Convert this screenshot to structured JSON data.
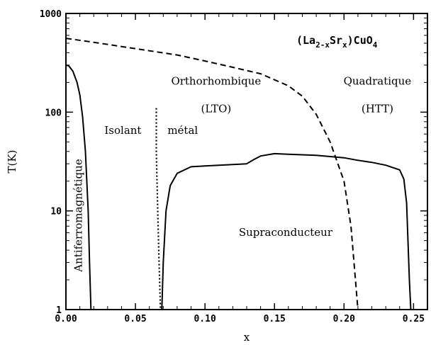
{
  "chart_data": {
    "type": "line",
    "title": "",
    "formula": {
      "base": "(La",
      "sub1": "2-x",
      "mid": "Sr",
      "sub2": "x",
      "tail": ")CuO",
      "sub3": "4"
    },
    "xlabel": "x",
    "ylabel": "T(K)",
    "xlim": [
      0.0,
      0.26
    ],
    "ylim": [
      1,
      1000
    ],
    "yscale": "log",
    "x_ticks": [
      0.0,
      0.05,
      0.1,
      0.15,
      0.2,
      0.25
    ],
    "x_tick_labels": [
      "0.00",
      "0.05",
      "0.10",
      "0.15",
      "0.20",
      "0.25"
    ],
    "y_ticks": [
      1,
      10,
      100,
      1000
    ],
    "y_tick_labels": [
      "1",
      "10",
      "100",
      "1000"
    ],
    "grid": false,
    "series": [
      {
        "style": "solid",
        "x": [
          0.0,
          0.002,
          0.005,
          0.008,
          0.01,
          0.012,
          0.014,
          0.016,
          0.017,
          0.018
        ],
        "y": [
          300,
          295,
          260,
          200,
          150,
          90,
          40,
          10,
          3,
          1
        ]
      },
      {
        "style": "dotted",
        "x": [
          0.065,
          0.065,
          0.066,
          0.067,
          0.068
        ],
        "y": [
          110,
          40,
          10,
          3,
          1
        ]
      },
      {
        "style": "dashed",
        "x": [
          0.0,
          0.02,
          0.05,
          0.08,
          0.1,
          0.12,
          0.14,
          0.16,
          0.17,
          0.18,
          0.19,
          0.2,
          0.205,
          0.21
        ],
        "y": [
          560,
          510,
          440,
          380,
          330,
          285,
          245,
          185,
          145,
          95,
          50,
          20,
          7,
          1
        ]
      },
      {
        "style": "solid",
        "x": [
          0.069,
          0.07,
          0.072,
          0.075,
          0.08,
          0.09,
          0.1,
          0.11,
          0.12,
          0.13,
          0.135,
          0.14,
          0.15,
          0.16,
          0.17,
          0.18,
          0.19,
          0.2,
          0.21,
          0.22,
          0.23,
          0.24,
          0.243,
          0.245,
          0.246,
          0.247,
          0.248
        ],
        "y": [
          1,
          3,
          10,
          18,
          24,
          28,
          28.5,
          29,
          29.5,
          30,
          33,
          36,
          38,
          37.5,
          37,
          36.5,
          35.5,
          34.5,
          32.5,
          31,
          29,
          26,
          21,
          12,
          5,
          2,
          1
        ]
      }
    ],
    "annotations": [
      {
        "text": "Antiferromagnétique",
        "x": 0.009,
        "y": 9,
        "rotation": -90
      },
      {
        "text": "Isolant",
        "x": 0.041,
        "y": 60
      },
      {
        "text": "métal",
        "x": 0.084,
        "y": 60
      },
      {
        "text": "Orthorhombique",
        "x": 0.108,
        "y": 190
      },
      {
        "text": "(LTO)",
        "x": 0.108,
        "y": 100
      },
      {
        "text": "Quadratique",
        "x": 0.224,
        "y": 190
      },
      {
        "text": "(HTT)",
        "x": 0.224,
        "y": 100
      },
      {
        "text": "Supraconducteur",
        "x": 0.158,
        "y": 5.6
      }
    ]
  }
}
